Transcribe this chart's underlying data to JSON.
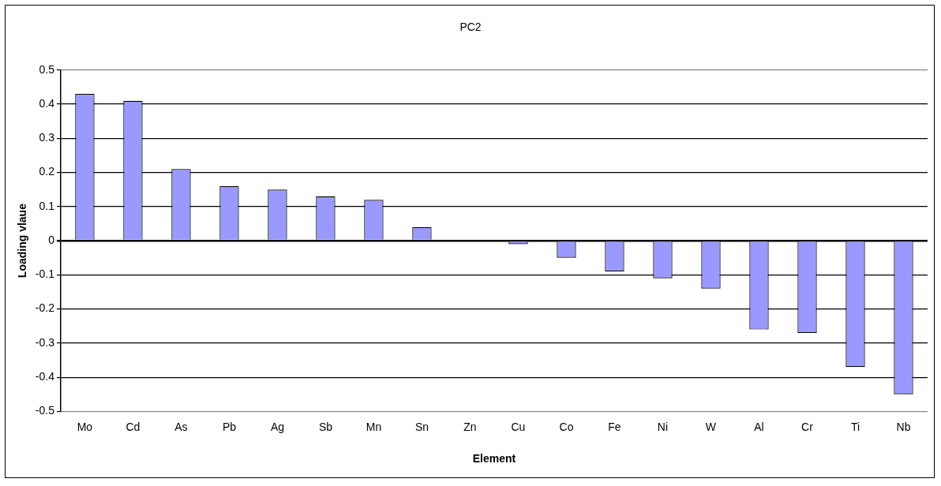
{
  "chart_data": {
    "type": "bar",
    "title": "PC2",
    "xlabel": "Element",
    "ylabel": "Loading vlaue",
    "categories": [
      "Mo",
      "Cd",
      "As",
      "Pb",
      "Ag",
      "Sb",
      "Mn",
      "Sn",
      "Zn",
      "Cu",
      "Co",
      "Fe",
      "Ni",
      "W",
      "Al",
      "Cr",
      "Ti",
      "Nb"
    ],
    "values": [
      0.43,
      0.41,
      0.21,
      0.16,
      0.15,
      0.13,
      0.12,
      0.04,
      0,
      -0.01,
      -0.05,
      -0.09,
      -0.11,
      -0.14,
      -0.26,
      -0.27,
      -0.37,
      -0.45
    ],
    "color": "#9999ff",
    "ylim": [
      -0.5,
      0.5
    ],
    "yticks": [
      -0.5,
      -0.4,
      -0.3,
      -0.2,
      -0.1,
      0,
      0.1,
      0.2,
      0.3,
      0.4,
      0.5
    ],
    "grid": "y"
  }
}
